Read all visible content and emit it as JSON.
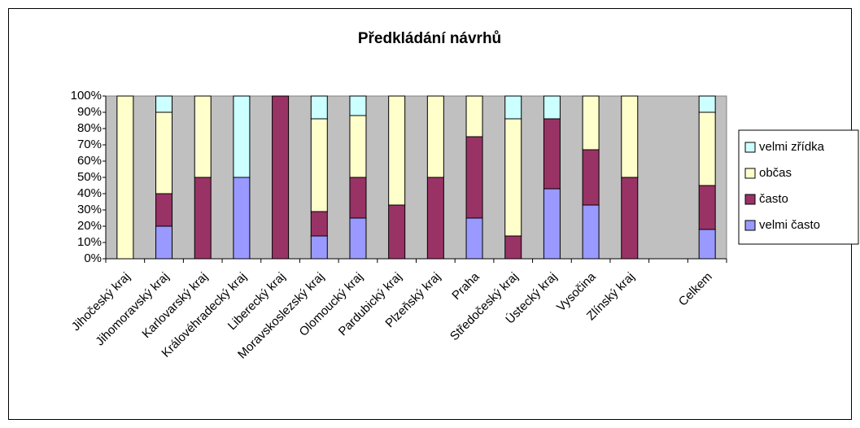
{
  "chart_data": {
    "type": "stacked_bar_100",
    "title": "Předkládání návrhů",
    "categories": [
      "Jihočeský kraj",
      "Jihomoravský kraj",
      "Karlovarský kraj",
      "Královéhradecký kraj",
      "Liberecký kraj",
      "Moravskoslezský kraj",
      "Olomoucký kraj",
      "Pardubický kraj",
      "Plzeňský kraj",
      "Praha",
      "Středočeský kraj",
      "Ústecký kraj",
      "Vysočina",
      "Zlínský kraj",
      null,
      "Celkem"
    ],
    "series": [
      {
        "name": "velmi často",
        "color": "#9999ff",
        "values": [
          0,
          20,
          0,
          50,
          0,
          14,
          25,
          0,
          0,
          25,
          0,
          43,
          33,
          0,
          null,
          18
        ]
      },
      {
        "name": "často",
        "color": "#993366",
        "values": [
          0,
          20,
          50,
          0,
          100,
          15,
          25,
          33,
          50,
          50,
          14,
          43,
          34,
          50,
          null,
          27
        ]
      },
      {
        "name": "občas",
        "color": "#ffffcc",
        "values": [
          100,
          50,
          50,
          0,
          0,
          57,
          38,
          67,
          50,
          25,
          72,
          0,
          33,
          50,
          null,
          45
        ]
      },
      {
        "name": "velmi zřídka",
        "color": "#ccffff",
        "values": [
          0,
          10,
          0,
          50,
          0,
          14,
          12,
          0,
          0,
          0,
          14,
          14,
          0,
          0,
          null,
          10
        ]
      }
    ],
    "ylim": [
      0,
      100
    ],
    "yticks": [
      {
        "value": 0,
        "label": "0%"
      },
      {
        "value": 10,
        "label": "10%"
      },
      {
        "value": 20,
        "label": "20%"
      },
      {
        "value": 30,
        "label": "30%"
      },
      {
        "value": 40,
        "label": "40%"
      },
      {
        "value": 50,
        "label": "50%"
      },
      {
        "value": 60,
        "label": "60%"
      },
      {
        "value": 70,
        "label": "70%"
      },
      {
        "value": 80,
        "label": "80%"
      },
      {
        "value": 90,
        "label": "90%"
      },
      {
        "value": 100,
        "label": "100%"
      }
    ],
    "legend": "right",
    "plot_background": "#c0c0c0"
  }
}
